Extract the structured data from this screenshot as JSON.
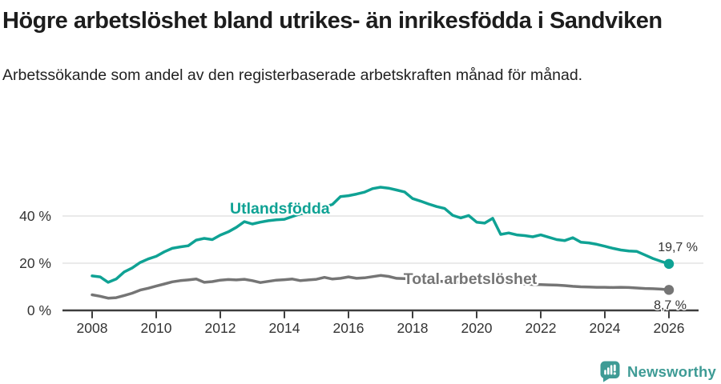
{
  "chart_data": {
    "type": "line",
    "title": "Högre arbetslöshet bland utrikes- än inrikesfödda i Sandviken",
    "subtitle": "Arbetssökande som andel av den registerbaserade arbetskraften månad för månad.",
    "unit": "%",
    "xlabel": "",
    "ylabel": "",
    "xlim": [
      2007.1,
      2026.9
    ],
    "ylim": [
      0,
      55
    ],
    "grid": "horizontal-only",
    "legend": "inline-labels",
    "x_ticks": [
      2008,
      2010,
      2012,
      2014,
      2016,
      2018,
      2020,
      2022,
      2024,
      2026
    ],
    "y_ticks": [
      {
        "value": 0,
        "label": "0 %"
      },
      {
        "value": 20,
        "label": "20 %"
      },
      {
        "value": 40,
        "label": "40 %"
      }
    ],
    "x": [
      2008.0,
      2008.25,
      2008.5,
      2008.75,
      2009.0,
      2009.25,
      2009.5,
      2009.75,
      2010.0,
      2010.25,
      2010.5,
      2010.75,
      2011.0,
      2011.25,
      2011.5,
      2011.75,
      2012.0,
      2012.25,
      2012.5,
      2012.75,
      2013.0,
      2013.25,
      2013.5,
      2013.75,
      2014.0,
      2014.25,
      2014.5,
      2014.75,
      2015.0,
      2015.25,
      2015.5,
      2015.75,
      2016.0,
      2016.25,
      2016.5,
      2016.75,
      2017.0,
      2017.25,
      2017.5,
      2017.75,
      2018.0,
      2018.25,
      2018.5,
      2018.75,
      2019.0,
      2019.25,
      2019.5,
      2019.75,
      2020.0,
      2020.25,
      2020.5,
      2020.75,
      2021.0,
      2021.25,
      2021.5,
      2021.75,
      2022.0,
      2022.25,
      2022.5,
      2022.75,
      2023.0,
      2023.25,
      2023.5,
      2023.75,
      2024.0,
      2024.25,
      2024.5,
      2024.75,
      2025.0,
      2025.25,
      2025.5,
      2025.75,
      2026.0
    ],
    "series": [
      {
        "name": "Utlandsfödda",
        "color": "#0FA294",
        "end_label": "19,7 %",
        "end_value": 19.7,
        "label_pos": {
          "x": 2012.3,
          "y": 41.0
        },
        "values": [
          14.6,
          14.2,
          11.9,
          13.3,
          16.3,
          18.0,
          20.3,
          21.8,
          22.9,
          24.8,
          26.3,
          26.9,
          27.4,
          29.8,
          30.5,
          30.0,
          31.9,
          33.3,
          35.2,
          37.6,
          36.6,
          37.4,
          38.0,
          38.4,
          38.6,
          39.8,
          40.9,
          41.4,
          42.4,
          43.8,
          44.9,
          48.2,
          48.6,
          49.3,
          50.1,
          51.6,
          52.2,
          51.8,
          51.0,
          50.2,
          47.4,
          46.3,
          45.1,
          44.0,
          43.2,
          40.3,
          39.2,
          40.2,
          37.4,
          37.0,
          39.0,
          32.2,
          32.8,
          32.0,
          31.7,
          31.2,
          32.0,
          31.0,
          30.0,
          29.6,
          30.8,
          28.9,
          28.6,
          28.0,
          27.2,
          26.3,
          25.6,
          25.2,
          25.0,
          23.5,
          22.0,
          20.8,
          19.7
        ]
      },
      {
        "name": "Total arbetslöshet",
        "color": "#757575",
        "end_label": "8,7 %",
        "end_value": 8.7,
        "label_pos": {
          "x": 2017.72,
          "y": 11.2
        },
        "values": [
          6.6,
          6.0,
          5.2,
          5.4,
          6.3,
          7.3,
          8.6,
          9.4,
          10.3,
          11.2,
          12.1,
          12.6,
          12.9,
          13.3,
          11.9,
          12.2,
          12.8,
          13.1,
          12.9,
          13.2,
          12.6,
          11.8,
          12.3,
          12.8,
          13.0,
          13.3,
          12.6,
          12.9,
          13.2,
          14.0,
          13.3,
          13.6,
          14.2,
          13.6,
          13.8,
          14.3,
          14.8,
          14.4,
          13.6,
          13.5,
          13.2,
          12.9,
          12.6,
          12.4,
          12.2,
          12.0,
          11.9,
          11.8,
          11.7,
          11.9,
          12.1,
          11.8,
          11.6,
          11.4,
          11.2,
          11.0,
          10.9,
          10.8,
          10.7,
          10.5,
          10.2,
          10.0,
          9.9,
          9.8,
          9.8,
          9.7,
          9.8,
          9.7,
          9.5,
          9.3,
          9.2,
          9.0,
          8.7
        ]
      }
    ]
  },
  "footer": {
    "brand": "Newsworthy",
    "brand_color": "#3E9B95",
    "logo_icon": "bar-chart-speech-pin-icon"
  }
}
